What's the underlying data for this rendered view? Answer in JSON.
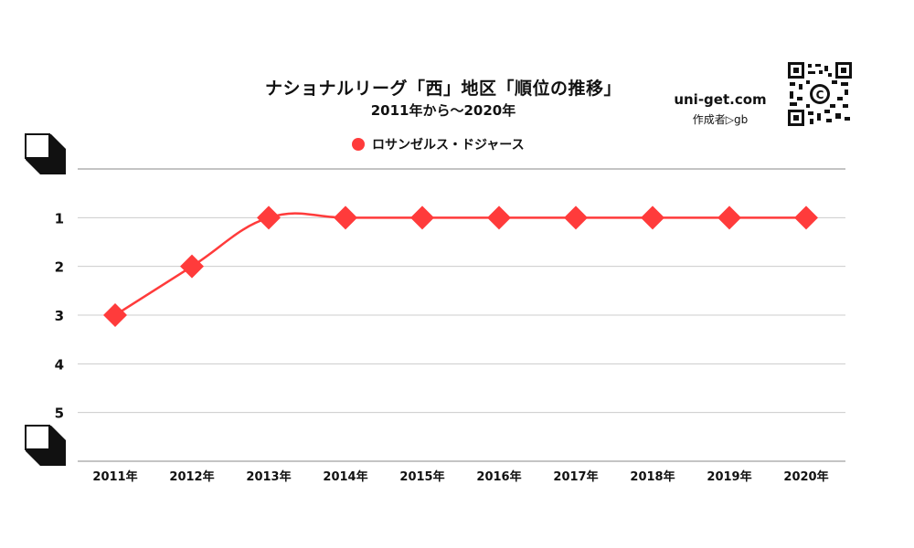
{
  "header": {
    "title": "ナショナルリーグ「西」地区「順位の推移」",
    "subtitle": "2011年から～2020年"
  },
  "brand": {
    "site": "uni-get.com",
    "author": "作成者▷gb",
    "qr_center_letter": "C"
  },
  "colors": {
    "series": "#ff3b3b",
    "grid": "#cccccc",
    "axis": "#888888"
  },
  "chart_data": {
    "type": "line",
    "title": "ナショナルリーグ「西」地区「順位の推移」",
    "subtitle": "2011年から～2020年",
    "xlabel": "",
    "ylabel": "",
    "categories": [
      "2011年",
      "2012年",
      "2013年",
      "2014年",
      "2015年",
      "2016年",
      "2017年",
      "2018年",
      "2019年",
      "2020年"
    ],
    "series": [
      {
        "name": "ロサンゼルス・ドジャース",
        "values": [
          3,
          2,
          1,
          1,
          1,
          1,
          1,
          1,
          1,
          1
        ],
        "marker": "diamond"
      }
    ],
    "yticks": [
      1,
      2,
      3,
      4,
      5
    ],
    "ylim": [
      0,
      5
    ],
    "y_inverted": true,
    "grid": true,
    "legend": "top-center"
  }
}
